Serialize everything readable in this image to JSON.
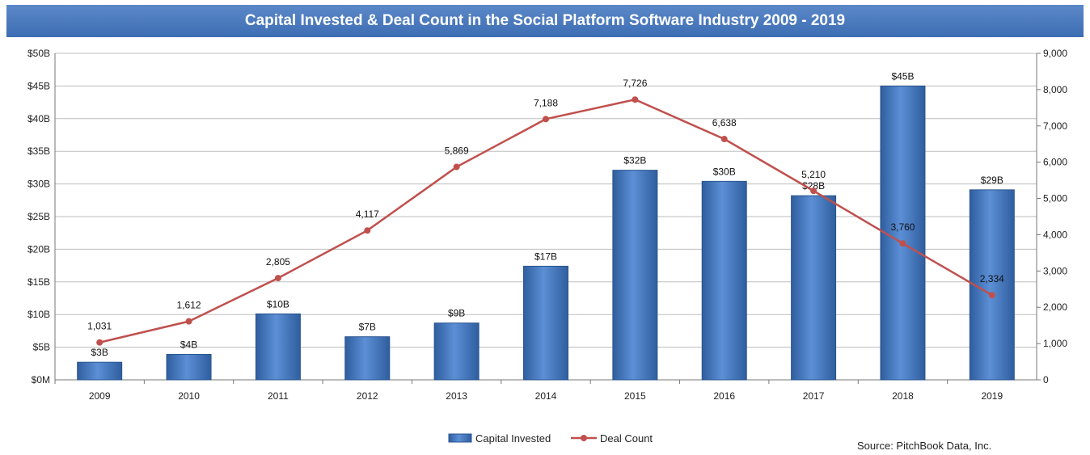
{
  "chart_data": {
    "type": "bar",
    "title": "Capital Invested & Deal Count in the Social Platform Software Industry 2009 - 2019",
    "categories": [
      "2009",
      "2010",
      "2011",
      "2012",
      "2013",
      "2014",
      "2015",
      "2016",
      "2017",
      "2018",
      "2019"
    ],
    "series": [
      {
        "name": "Capital Invested",
        "type": "bar",
        "axis": "left",
        "color": "#3f6fb5",
        "values": [
          2.7,
          3.9,
          10.1,
          6.6,
          8.7,
          17.4,
          32.1,
          30.4,
          28.2,
          45.0,
          29.1
        ],
        "labels": [
          "$3B",
          "$4B",
          "$10B",
          "$7B",
          "$9B",
          "$17B",
          "$32B",
          "$30B",
          "$28B",
          "$45B",
          "$29B"
        ]
      },
      {
        "name": "Deal Count",
        "type": "line",
        "axis": "right",
        "color": "#c0504d",
        "values": [
          1031,
          1612,
          2805,
          4117,
          5869,
          7188,
          7726,
          6638,
          5210,
          3760,
          2334
        ],
        "labels": [
          "1,031",
          "1,612",
          "2,805",
          "4,117",
          "5,869",
          "7,188",
          "7,726",
          "6,638",
          "5,210",
          "3,760",
          "2,334"
        ]
      }
    ],
    "y_left": {
      "min": 0,
      "max": 50,
      "ticks": [
        "$0M",
        "$5B",
        "$10B",
        "$15B",
        "$20B",
        "$25B",
        "$30B",
        "$35B",
        "$40B",
        "$45B",
        "$50B"
      ]
    },
    "y_right": {
      "min": 0,
      "max": 9000,
      "ticks": [
        "0",
        "1,000",
        "2,000",
        "3,000",
        "4,000",
        "5,000",
        "6,000",
        "7,000",
        "8,000",
        "9,000"
      ]
    },
    "grid": true,
    "legend_position": "bottom-center"
  },
  "source_text": "Source: PitchBook Data, Inc."
}
